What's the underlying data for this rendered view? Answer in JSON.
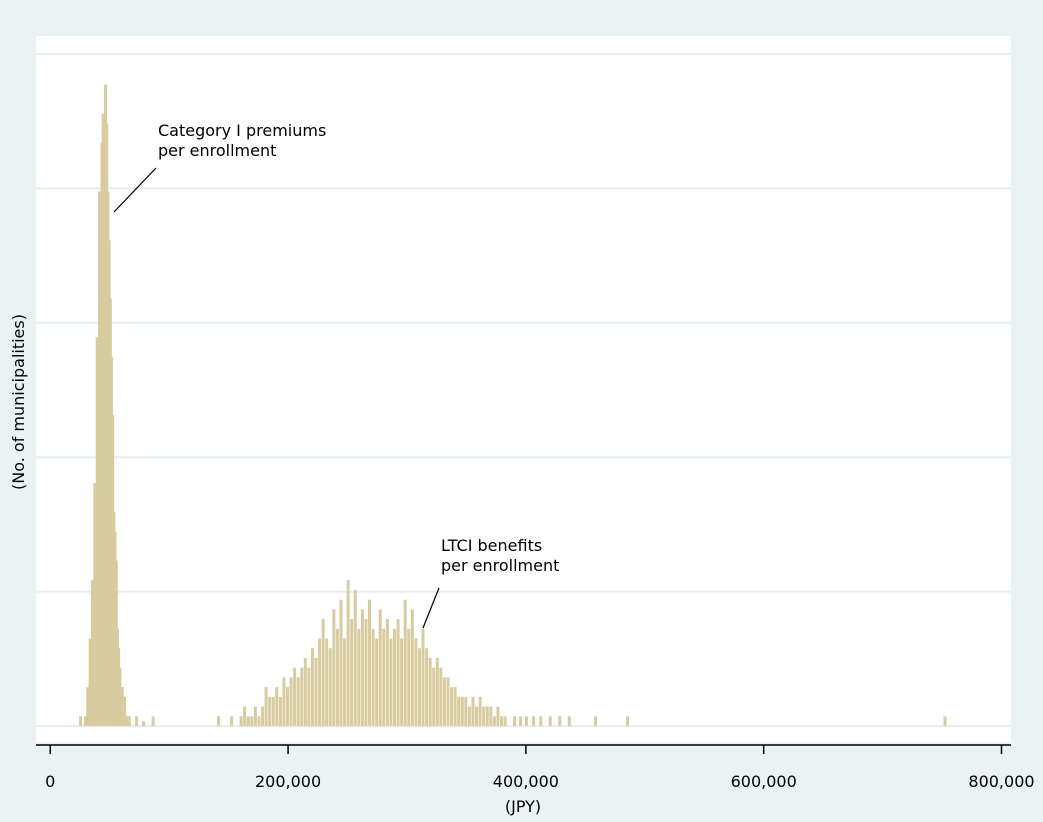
{
  "chart_data": {
    "type": "histogram",
    "xlabel": "(JPY)",
    "ylabel": "(No. of municipalities)",
    "xlim": [
      -12000,
      808000
    ],
    "xticks": [
      0,
      200000,
      400000,
      600000,
      800000
    ],
    "xtick_labels": [
      "0",
      "200,000",
      "400,000",
      "600,000",
      "800,000"
    ],
    "y_gridlines": 5,
    "grid": true,
    "legend": "none",
    "bar_color": "#d8cb9f",
    "annotations": [
      {
        "lines": [
          "Category I premiums",
          "per enrollment"
        ]
      },
      {
        "lines": [
          "LTCI benefits",
          "per enrollment"
        ]
      }
    ],
    "series": [
      {
        "x": [
          25000,
          27000,
          29000,
          31000,
          33000,
          35000,
          37000,
          39000,
          41000,
          43000,
          44000,
          45000,
          46000,
          47000,
          48000,
          49000,
          50000,
          51000,
          52000,
          53000,
          54000,
          55000,
          56000,
          57000,
          58000,
          60000,
          62000,
          64000,
          66000,
          72000,
          78000,
          86000
        ],
        "values": [
          1,
          0,
          1,
          4,
          9,
          15,
          25,
          40,
          55,
          60,
          63,
          58,
          66,
          62,
          55,
          50,
          44,
          38,
          32,
          22,
          20,
          17,
          10,
          8,
          6,
          4,
          3,
          1,
          1,
          1,
          0.5,
          1
        ]
      },
      {
        "x": [
          141000,
          152000,
          160000,
          163000,
          166000,
          169000,
          172000,
          175000,
          178000,
          181000,
          184000,
          187000,
          190000,
          193000,
          196000,
          199000,
          202000,
          205000,
          208000,
          211000,
          214000,
          217000,
          220000,
          223000,
          226000,
          229000,
          232000,
          235000,
          238000,
          241000,
          244000,
          247000,
          250000,
          253000,
          256000,
          259000,
          262000,
          265000,
          268000,
          271000,
          274000,
          277000,
          280000,
          283000,
          286000,
          289000,
          292000,
          295000,
          298000,
          301000,
          304000,
          307000,
          310000,
          313000,
          316000,
          319000,
          322000,
          325000,
          328000,
          331000,
          334000,
          337000,
          340000,
          343000,
          346000,
          349000,
          352000,
          355000,
          358000,
          361000,
          364000,
          367000,
          370000,
          373000,
          376000,
          379000,
          382000,
          390000,
          395000,
          400000,
          406000,
          412000,
          420000,
          428000,
          436000,
          458000,
          485000,
          752000
        ],
        "values": [
          1,
          1,
          1,
          2,
          1,
          1,
          2,
          1,
          2,
          4,
          3,
          3,
          4,
          3,
          5,
          4,
          5,
          6,
          5,
          6,
          7,
          6,
          8,
          7,
          9,
          11,
          9,
          8,
          12,
          10,
          13,
          9,
          15,
          11,
          14,
          10,
          12,
          11,
          13,
          10,
          9,
          12,
          10,
          11,
          9,
          10,
          11,
          9,
          13,
          10,
          12,
          9,
          8,
          10,
          8,
          7,
          6,
          7,
          6,
          5,
          5,
          4,
          4,
          3,
          3,
          3,
          2,
          3,
          2,
          3,
          2,
          2,
          2,
          1,
          2,
          1,
          1,
          1,
          1,
          1,
          1,
          1,
          1,
          1,
          1,
          1,
          1,
          1
        ]
      }
    ]
  }
}
